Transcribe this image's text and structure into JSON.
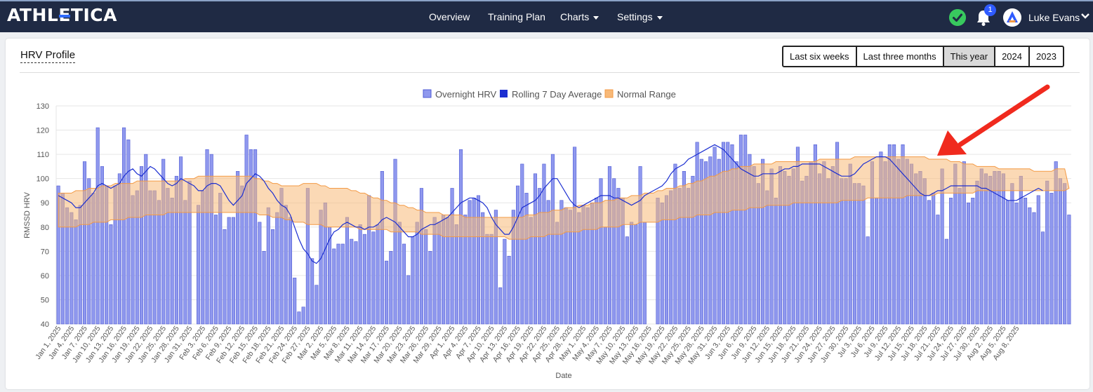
{
  "app": {
    "brand": "ATHLETICA",
    "nav": [
      {
        "label": "Overview",
        "has_caret": false
      },
      {
        "label": "Training Plan",
        "has_caret": false
      },
      {
        "label": "Charts",
        "has_caret": true
      },
      {
        "label": "Settings",
        "has_caret": true
      }
    ],
    "notification_count": "1",
    "user_name": "Luke Evans",
    "icons": [
      "status-ok-icon",
      "bell-icon",
      "avatar-logo-icon",
      "chevron-down-icon"
    ],
    "colors": {
      "topbar": "#1f2a44",
      "accent": "#2f5bff",
      "ok": "#38c95e"
    }
  },
  "panel": {
    "title": "HRV Profile",
    "range_buttons": [
      "Last six weeks",
      "Last three months",
      "This year",
      "2024",
      "2023"
    ],
    "selected_range": "This year"
  },
  "chart_data": {
    "type": "bar+line+band",
    "title": "",
    "xlabel": "Date",
    "ylabel": "RMSSD HRV",
    "ylim": [
      40,
      130
    ],
    "yticks": [
      40,
      50,
      60,
      70,
      80,
      90,
      100,
      110,
      120,
      130
    ],
    "legend": {
      "placement": "top-center",
      "entries": [
        "Overnight HRV",
        "Rolling 7 Day Average",
        "Normal Range"
      ]
    },
    "colors": {
      "bars": "#8f98ee",
      "bar_edge": "#4f5bd5",
      "line": "#1c2fd1",
      "band": "#f8b978",
      "band_edge": "#f39a45"
    },
    "start_date": "2025-01-01",
    "tick_every_days": 3,
    "xticks": [
      "Jan 1, 2025",
      "Jan 4, 2025",
      "Jan 7, 2025",
      "Jan 10, 2025",
      "Jan 13, 2025",
      "Jan 16, 2025",
      "Jan 19, 2025",
      "Jan 22, 2025",
      "Jan 25, 2025",
      "Jan 28, 2025",
      "Jan 31, 2025",
      "Feb 3, 2025",
      "Feb 6, 2025",
      "Feb 9, 2025",
      "Feb 12, 2025",
      "Feb 15, 2025",
      "Feb 18, 2025",
      "Feb 21, 2025",
      "Feb 24, 2025",
      "Feb 27, 2025",
      "Mar 2, 2025",
      "Mar 5, 2025",
      "Mar 8, 2025",
      "Mar 11, 2025",
      "Mar 14, 2025",
      "Mar 17, 2025",
      "Mar 20, 2025",
      "Mar 23, 2025",
      "Mar 26, 2025",
      "Mar 29, 2025",
      "Apr 1, 2025",
      "Apr 4, 2025",
      "Apr 7, 2025",
      "Apr 10, 2025",
      "Apr 13, 2025",
      "Apr 16, 2025",
      "Apr 19, 2025",
      "Apr 22, 2025",
      "Apr 25, 2025",
      "Apr 28, 2025",
      "May 1, 2025",
      "May 4, 2025",
      "May 7, 2025",
      "May 10, 2025",
      "May 13, 2025",
      "May 16, 2025",
      "May 19, 2025",
      "May 22, 2025",
      "May 25, 2025",
      "May 28, 2025",
      "May 31, 2025",
      "Jun 3, 2025",
      "Jun 6, 2025",
      "Jun 9, 2025",
      "Jun 12, 2025",
      "Jun 15, 2025",
      "Jun 18, 2025",
      "Jun 21, 2025",
      "Jun 24, 2025",
      "Jun 27, 2025",
      "Jun 30, 2025",
      "Jul 3, 2025",
      "Jul 6, 2025",
      "Jul 9, 2025",
      "Jul 12, 2025",
      "Jul 15, 2025",
      "Jul 18, 2025",
      "Jul 21, 2025",
      "Jul 24, 2025",
      "Jul 27, 2025",
      "Jul 30, 2025",
      "Aug 2, 2025",
      "Aug 5, 2025",
      "Aug 8, 2025"
    ],
    "overnight_hrv": [
      97,
      94,
      88,
      86,
      83,
      89,
      107,
      100,
      94,
      121,
      105,
      97,
      81,
      97,
      102,
      121,
      116,
      93,
      95,
      105,
      110,
      95,
      95,
      91,
      108,
      96,
      92,
      101,
      109,
      91,
      99,
      null,
      89,
      95,
      112,
      110,
      85,
      94,
      79,
      84,
      84,
      103,
      97,
      118,
      112,
      112,
      82,
      70,
      88,
      79,
      86,
      96,
      89,
      84,
      59,
      45,
      47,
      96,
      67,
      56,
      87,
      90,
      80,
      71,
      73,
      73,
      84,
      75,
      74,
      81,
      77,
      93,
      78,
      81,
      103,
      66,
      70,
      108,
      82,
      73,
      60,
      76,
      82,
      96,
      79,
      70,
      84,
      82,
      85,
      84,
      96,
      81,
      112,
      85,
      91,
      92,
      93,
      86,
      77,
      77,
      87,
      55,
      75,
      68,
      87,
      97,
      106,
      94,
      84,
      102,
      96,
      106,
      91,
      110,
      82,
      91,
      88,
      87,
      113,
      86,
      89,
      88,
      90,
      92,
      100,
      80,
      105,
      100,
      96,
      92,
      76,
      82,
      81,
      105,
      82,
      null,
      null,
      92,
      90,
      93,
      95,
      106,
      96,
      103,
      96,
      101,
      115,
      108,
      107,
      109,
      113,
      108,
      115,
      115,
      114,
      107,
      118,
      118,
      110,
      105,
      98,
      108,
      95,
      104,
      92,
      105,
      103,
      101,
      104,
      113,
      99,
      101,
      107,
      114,
      102,
      107,
      100,
      105,
      115,
      100,
      100,
      106,
      98,
      98,
      97,
      76,
      107,
      92,
      111,
      107,
      114,
      114,
      108,
      114,
      108,
      106,
      102,
      103,
      100,
      91,
      94,
      85,
      104,
      75,
      92,
      106,
      96,
      107,
      90,
      92,
      99,
      104,
      102,
      101,
      103,
      103,
      102,
      91,
      98,
      90,
      101,
      92,
      88,
      86,
      93,
      78,
      99,
      94,
      107,
      100,
      98,
      85
    ],
    "rolling_7_day_avg": [
      93,
      92,
      91,
      90,
      88,
      88,
      90,
      92,
      94,
      97,
      98,
      97,
      96,
      97,
      98,
      101,
      103,
      104,
      102,
      101,
      103,
      105,
      104,
      102,
      100,
      98,
      97,
      98,
      100,
      99,
      98,
      97,
      95,
      95,
      97,
      98,
      98,
      97,
      94,
      91,
      89,
      91,
      93,
      98,
      100,
      102,
      101,
      99,
      96,
      94,
      91,
      89,
      88,
      85,
      80,
      75,
      71,
      69,
      66,
      65,
      67,
      71,
      75,
      78,
      79,
      81,
      82,
      81,
      80,
      80,
      79,
      80,
      80,
      81,
      83,
      84,
      83,
      82,
      80,
      78,
      76,
      76,
      77,
      79,
      80,
      81,
      81,
      82,
      83,
      84,
      86,
      88,
      90,
      91,
      92,
      92,
      91,
      90,
      88,
      84,
      81,
      79,
      77,
      77,
      80,
      84,
      88,
      89,
      90,
      91,
      93,
      96,
      98,
      100,
      100,
      97,
      94,
      91,
      89,
      88,
      89,
      90,
      91,
      92,
      93,
      93,
      93,
      92,
      92,
      91,
      90,
      89,
      90,
      91,
      93,
      94,
      95,
      96,
      97,
      99,
      102,
      104,
      105,
      106,
      108,
      109,
      110,
      111,
      112,
      113,
      114,
      113,
      112,
      110,
      108,
      106,
      104,
      103,
      102,
      101,
      101,
      102,
      102,
      102,
      102,
      103,
      104,
      104,
      105,
      105,
      106,
      106,
      106,
      106,
      106,
      105,
      104,
      103,
      102,
      101,
      101,
      101,
      102,
      104,
      106,
      107,
      108,
      109,
      109,
      109,
      108,
      106,
      104,
      102,
      100,
      98,
      96,
      94,
      93,
      93,
      94,
      95,
      95,
      96,
      97,
      97,
      97,
      97,
      97,
      97,
      97,
      96,
      96,
      95,
      94,
      93,
      92,
      91,
      91,
      91,
      92,
      93,
      94,
      95,
      96,
      95
    ],
    "normal_range_upper": [
      94,
      94,
      94,
      94,
      95,
      95,
      95,
      96,
      96,
      96,
      97,
      97,
      97,
      98,
      98,
      98,
      98,
      98,
      99,
      99,
      99,
      99,
      99,
      99,
      99,
      99,
      99,
      99,
      99,
      100,
      100,
      100,
      101,
      101,
      101,
      101,
      101,
      101,
      101,
      101,
      101,
      101,
      101,
      101,
      101,
      100,
      100,
      99,
      99,
      98,
      98,
      97,
      97,
      97,
      97,
      97,
      98,
      98,
      98,
      98,
      97,
      97,
      96,
      96,
      96,
      96,
      96,
      95,
      95,
      94,
      94,
      93,
      92,
      92,
      91,
      91,
      90,
      90,
      89,
      89,
      88,
      88,
      87,
      87,
      86,
      86,
      86,
      86,
      85,
      85,
      85,
      85,
      85,
      84,
      84,
      84,
      84,
      84,
      84,
      84,
      84,
      84,
      84,
      84,
      84,
      84,
      84,
      85,
      85,
      85,
      86,
      86,
      86,
      87,
      87,
      87,
      88,
      88,
      88,
      89,
      89,
      89,
      90,
      90,
      90,
      91,
      91,
      91,
      92,
      92,
      92,
      93,
      93,
      93,
      94,
      94,
      94,
      95,
      95,
      96,
      96,
      96,
      97,
      97,
      98,
      98,
      99,
      99,
      100,
      101,
      101,
      102,
      103,
      103,
      104,
      104,
      105,
      105,
      105,
      106,
      106,
      106,
      106,
      106,
      107,
      107,
      107,
      107,
      107,
      107,
      107,
      107,
      107,
      107,
      108,
      108,
      108,
      108,
      108,
      108,
      108,
      108,
      109,
      109,
      109,
      109,
      109,
      109,
      109,
      109,
      109,
      109,
      109,
      109,
      109,
      109,
      109,
      109,
      109,
      108,
      108,
      108,
      108,
      108,
      107,
      107,
      107,
      106,
      106,
      106,
      105,
      105,
      105,
      105,
      105,
      104,
      104,
      104,
      104,
      104,
      104,
      104,
      104,
      103,
      103,
      103,
      103,
      103,
      104,
      104,
      104
    ],
    "normal_range_lower": [
      80,
      80,
      80,
      80,
      80,
      81,
      81,
      81,
      82,
      82,
      82,
      82,
      83,
      83,
      83,
      83,
      84,
      84,
      84,
      84,
      85,
      85,
      85,
      85,
      85,
      86,
      86,
      86,
      86,
      86,
      86,
      86,
      86,
      86,
      86,
      86,
      86,
      86,
      86,
      86,
      86,
      86,
      86,
      86,
      86,
      86,
      85,
      85,
      85,
      84,
      84,
      84,
      83,
      83,
      82,
      82,
      82,
      81,
      81,
      81,
      81,
      80,
      80,
      80,
      80,
      80,
      80,
      80,
      80,
      79,
      79,
      79,
      79,
      79,
      79,
      79,
      78,
      78,
      78,
      78,
      78,
      78,
      78,
      77,
      77,
      77,
      77,
      77,
      76,
      76,
      76,
      76,
      76,
      76,
      76,
      76,
      76,
      76,
      76,
      76,
      76,
      76,
      76,
      75,
      75,
      75,
      75,
      75,
      76,
      76,
      76,
      76,
      77,
      77,
      77,
      77,
      78,
      78,
      78,
      78,
      79,
      79,
      79,
      79,
      80,
      80,
      80,
      80,
      80,
      81,
      81,
      81,
      81,
      82,
      82,
      82,
      82,
      82,
      83,
      83,
      83,
      83,
      84,
      84,
      84,
      84,
      85,
      85,
      85,
      85,
      86,
      86,
      86,
      86,
      87,
      87,
      87,
      87,
      88,
      88,
      88,
      88,
      89,
      89,
      89,
      89,
      89,
      89,
      90,
      90,
      90,
      90,
      90,
      90,
      90,
      90,
      90,
      90,
      90,
      91,
      91,
      91,
      91,
      91,
      91,
      92,
      92,
      92,
      92,
      92,
      92,
      92,
      92,
      92,
      93,
      93,
      93,
      93,
      93,
      93,
      93,
      94,
      94,
      94,
      94,
      94,
      94,
      94,
      94,
      94,
      95,
      95,
      95,
      95,
      95,
      95,
      95,
      95,
      95,
      95,
      95,
      95,
      95,
      95,
      95,
      95,
      95,
      95,
      95,
      95,
      95,
      96
    ]
  }
}
